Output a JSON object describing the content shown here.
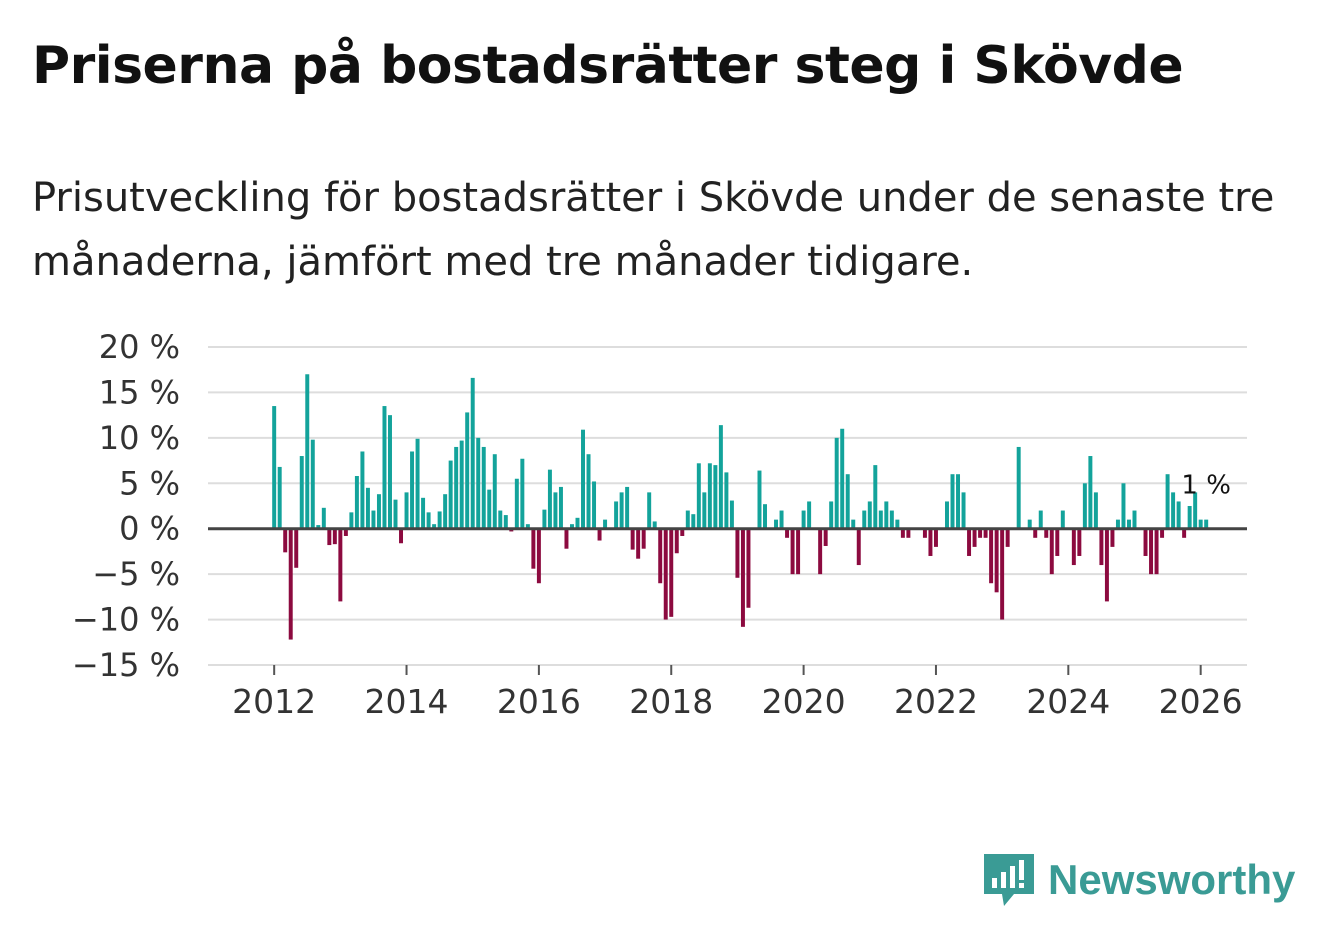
{
  "title": "Priserna på bostadsrätter steg i Skövde",
  "subtitle": "Prisutveckling för bostadsrätter i Skövde under de senaste tre månaderna, jämfört med tre månader tidigare.",
  "brand": {
    "name": "Newsworthy",
    "color": "#3a9b95",
    "icon": "newsworthy-chart-bubble-icon"
  },
  "colors": {
    "positive": "#13a39b",
    "negative": "#8c0a3f",
    "grid": "#dddddd",
    "zero": "#444444"
  },
  "chart_data": {
    "type": "bar",
    "title": "Priserna på bostadsrätter steg i Skövde",
    "xlabel": "",
    "ylabel": "",
    "ylim": [
      -15,
      20
    ],
    "xlim": [
      2011.0,
      2026.7
    ],
    "yticks": [
      20,
      15,
      10,
      5,
      0,
      -5,
      -10,
      -15
    ],
    "ytick_labels": [
      "20 %",
      "15 %",
      "10 %",
      "5 %",
      "0 %",
      "−5 %",
      "−10 %",
      "−15 %"
    ],
    "xticks": [
      2012,
      2014,
      2016,
      2018,
      2020,
      2022,
      2024,
      2026
    ],
    "xtick_labels": [
      "2012",
      "2014",
      "2016",
      "2018",
      "2020",
      "2022",
      "2024",
      "2026"
    ],
    "start": {
      "year": 2012,
      "month": 1
    },
    "annotation": {
      "label": "1 %",
      "value": 1,
      "position": "last-bar"
    },
    "values": [
      13.5,
      6.8,
      -2.6,
      -12.2,
      -4.3,
      8.0,
      17.0,
      9.8,
      0.4,
      2.3,
      -1.8,
      -1.7,
      -8.0,
      -0.8,
      1.8,
      5.8,
      8.5,
      4.5,
      2.0,
      3.8,
      13.5,
      12.5,
      3.2,
      -1.6,
      4.0,
      8.5,
      9.9,
      3.4,
      1.8,
      0.5,
      1.9,
      3.8,
      7.5,
      9.0,
      9.7,
      12.8,
      16.6,
      10.0,
      9.0,
      4.3,
      8.2,
      2.0,
      1.5,
      -0.3,
      5.5,
      7.7,
      0.5,
      -4.4,
      -6.0,
      2.1,
      6.5,
      4.0,
      4.6,
      -2.2,
      0.5,
      1.2,
      10.9,
      8.2,
      5.2,
      -1.3,
      1.0,
      0.0,
      3.0,
      4.0,
      4.6,
      -2.3,
      -3.3,
      -2.2,
      4.0,
      0.8,
      -6.0,
      -10.0,
      -9.7,
      -2.7,
      -0.8,
      2.0,
      1.6,
      7.2,
      4.0,
      7.2,
      7.0,
      11.4,
      6.2,
      3.1,
      -5.4,
      -10.8,
      -8.7,
      0.0,
      6.4,
      2.7,
      0.0,
      1.0,
      2.0,
      -1.0,
      -5.0,
      -5.0,
      2.0,
      3.0,
      0.0,
      -5.0,
      -1.9,
      3.0,
      10.0,
      11.0,
      6.0,
      1.0,
      -4.0,
      2.0,
      3.0,
      7.0,
      2.0,
      3.0,
      2.0,
      1.0,
      -1.0,
      -1.0,
      0.0,
      0.0,
      -1.0,
      -3.0,
      -2.0,
      0.0,
      3.0,
      6.0,
      6.0,
      4.0,
      -3.0,
      -2.0,
      -1.0,
      -1.0,
      -6.0,
      -7.0,
      -10.0,
      -2.0,
      0.0,
      9.0,
      0.0,
      1.0,
      -1.0,
      2.0,
      -1.0,
      -5.0,
      -3.0,
      2.0,
      0.0,
      -4.0,
      -3.0,
      5.0,
      8.0,
      4.0,
      -4.0,
      -8.0,
      -2.0,
      1.0,
      5.0,
      1.0,
      2.0,
      0.0,
      -3.0,
      -5.0,
      -5.0,
      -1.0,
      6.0,
      4.0,
      3.0,
      -1.0,
      2.5,
      4.0,
      1.0,
      1.0
    ]
  }
}
